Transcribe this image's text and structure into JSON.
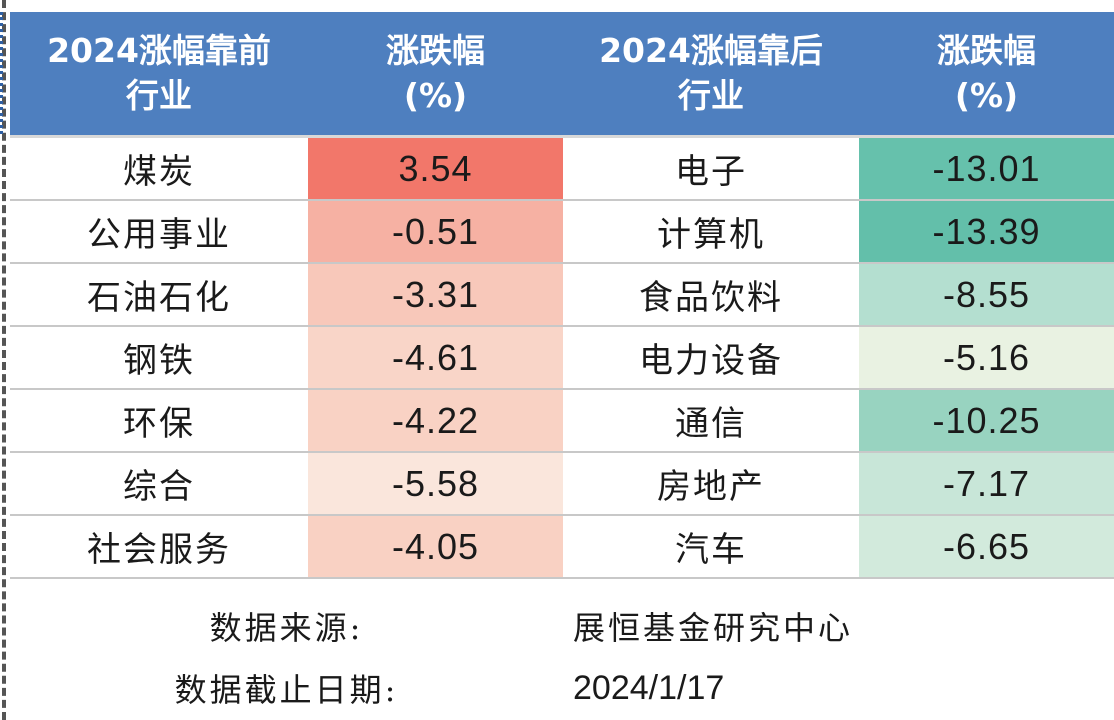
{
  "header": {
    "col1": [
      "2024涨幅靠前",
      "行业"
    ],
    "col2": [
      "涨跌幅",
      "(%)"
    ],
    "col3": [
      "2024涨幅靠后",
      "行业"
    ],
    "col4": [
      "涨跌幅",
      "(%)"
    ]
  },
  "rows": [
    {
      "top_name": "煤炭",
      "top_pct": "3.54",
      "top_color": "#f2776a",
      "bottom_name": "电子",
      "bottom_pct": "-13.01",
      "bottom_color": "#66c1ac"
    },
    {
      "top_name": "公用事业",
      "top_pct": "-0.51",
      "top_color": "#f6b1a3",
      "bottom_name": "计算机",
      "bottom_pct": "-13.39",
      "bottom_color": "#63bfaa"
    },
    {
      "top_name": "石油石化",
      "top_pct": "-3.31",
      "top_color": "#f8c8ba",
      "bottom_name": "食品饮料",
      "bottom_pct": "-8.55",
      "bottom_color": "#b4dfd0"
    },
    {
      "top_name": "钢铁",
      "top_pct": "-4.61",
      "top_color": "#f9d5c8",
      "bottom_name": "电力设备",
      "bottom_pct": "-5.16",
      "bottom_color": "#e9f2e2"
    },
    {
      "top_name": "环保",
      "top_pct": "-4.22",
      "top_color": "#f9d2c4",
      "bottom_name": "通信",
      "bottom_pct": "-10.25",
      "bottom_color": "#98d3c0"
    },
    {
      "top_name": "综合",
      "top_pct": "-5.58",
      "top_color": "#fae6dc",
      "bottom_name": "房地产",
      "bottom_pct": "-7.17",
      "bottom_color": "#c8e6d8"
    },
    {
      "top_name": "社会服务",
      "top_pct": "-4.05",
      "top_color": "#f9d1c3",
      "bottom_name": "汽车",
      "bottom_pct": "-6.65",
      "bottom_color": "#d2eadc"
    }
  ],
  "footer": {
    "source_label": "数据来源:",
    "source_value": "展恒基金研究中心",
    "date_label": "数据截止日期:",
    "date_value": "2024/1/17"
  },
  "colors": {
    "header_bg": "#4e7fbf",
    "header_text": "#ffffff"
  }
}
